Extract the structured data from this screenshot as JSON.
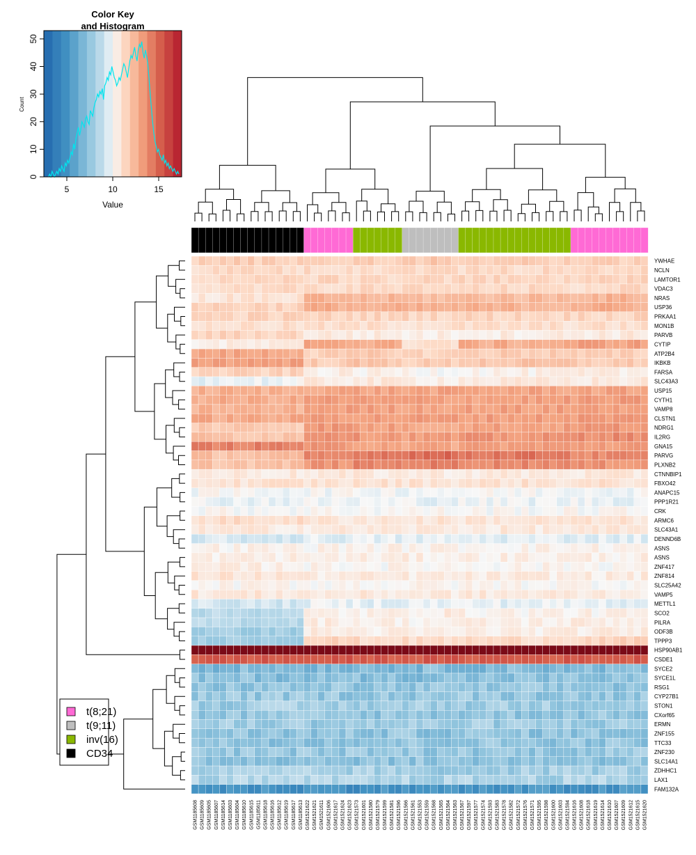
{
  "chart_data": {
    "type": "heatmap",
    "color_key": {
      "title_line1": "Color Key",
      "title_line2": "and Histogram",
      "xlabel": "Value",
      "ylabel": "Count",
      "xlim": [
        2.5,
        17.5
      ],
      "ylim": [
        0,
        53
      ],
      "xticks": [
        5,
        10,
        15
      ],
      "yticks": [
        0,
        10,
        20,
        30,
        40,
        50
      ],
      "color_low": "#2166ac",
      "color_mid": "#f7f7f7",
      "color_high": "#b2182b",
      "histogram_color": "#00e5ee",
      "histogram_counts": [
        0,
        1,
        0,
        2,
        1,
        0,
        1,
        2,
        1,
        3,
        2,
        4,
        3,
        2,
        5,
        4,
        6,
        5,
        7,
        9,
        8,
        12,
        10,
        14,
        16,
        18,
        15,
        17,
        20,
        19,
        18,
        21,
        22,
        20,
        19,
        24,
        23,
        22,
        25,
        27,
        28,
        30,
        29,
        31,
        30,
        32,
        28,
        33,
        34,
        36,
        35,
        38,
        37,
        40,
        38,
        36,
        35,
        33,
        34,
        36,
        35,
        37,
        39,
        41,
        40,
        38,
        36,
        39,
        42,
        44,
        43,
        45,
        47,
        44,
        42,
        46,
        48,
        47,
        49,
        45,
        43,
        46,
        44,
        41,
        36,
        30,
        25,
        20,
        16,
        13,
        11,
        9,
        10,
        8,
        7,
        6,
        8,
        5,
        6,
        4,
        5,
        3,
        4,
        3,
        2,
        3,
        2,
        1,
        2,
        1
      ]
    },
    "legend": [
      {
        "label": "t(8;21)",
        "color": "#ff6ad5"
      },
      {
        "label": "t(9;11)",
        "color": "#bebebe"
      },
      {
        "label": "inv(16)",
        "color": "#8ab800"
      },
      {
        "label": "CD34",
        "color": "#000000"
      }
    ],
    "genes": [
      "YWHAE",
      "NCLN",
      "LAMTOR1",
      "VDAC3",
      "NRAS",
      "USP36",
      "PRKAA1",
      "MON1B",
      "PARVB",
      "CYTIP",
      "ATP2B4",
      "IKBKB",
      "FARSA",
      "SLC43A3",
      "USP15",
      "CYTH1",
      "VAMP8",
      "CLSTN1",
      "NDRG1",
      "IL2RG",
      "GNA15",
      "PARVG",
      "PLXNB2",
      "CTNNBIP1",
      "FBXO42",
      "ANAPC15",
      "PPP1R21",
      "CRK",
      "ARMC6",
      "SLC43A1",
      "DENND6B",
      "ASNS",
      "ASNS",
      "ZNF417",
      "ZNF814",
      "SLC25A42",
      "VAMP5",
      "METTL1",
      "SCO2",
      "PILRA",
      "ODF3B",
      "TPPP3",
      "HSP90AB1",
      "CSDE1",
      "SYCE2",
      "SYCE1L",
      "RSG1",
      "CYP27B1",
      "STON1",
      "CXorf65",
      "ERMN",
      "ZNF155",
      "TTC33",
      "ZNF230",
      "SLC14A1",
      "ZDHHC1",
      "LAX1",
      "FAM132A"
    ],
    "samples": [
      "GSM1185608",
      "GSM1185609",
      "GSM1185605",
      "GSM1185607",
      "GSM1185614",
      "GSM1185603",
      "GSM1185604",
      "GSM1185610",
      "GSM1185615",
      "GSM1185611",
      "GSM1185618",
      "GSM1185616",
      "GSM1185612",
      "GSM1185619",
      "GSM1185617",
      "GSM1185613",
      "GSM1521622",
      "GSM1521621",
      "GSM1521611",
      "GSM1521606",
      "GSM1521617",
      "GSM1521624",
      "GSM1521623",
      "GSM1521573",
      "GSM1521601",
      "GSM1521580",
      "GSM1521579",
      "GSM1521599",
      "GSM1521581",
      "GSM1521596",
      "GSM1521566",
      "GSM1521561",
      "GSM1521553",
      "GSM1521559",
      "GSM1521568",
      "GSM1521565",
      "GSM1521564",
      "GSM1521563",
      "GSM1521567",
      "GSM1521597",
      "GSM1521577",
      "GSM1521574",
      "GSM1521593",
      "GSM1521583",
      "GSM1521578",
      "GSM1521582",
      "GSM1521572",
      "GSM1521576",
      "GSM1521571",
      "GSM1521595",
      "GSM1521598",
      "GSM1521600",
      "GSM1521603",
      "GSM1521594",
      "GSM1521616",
      "GSM1521608",
      "GSM1521618",
      "GSM1521619",
      "GSM1521614",
      "GSM1521610",
      "GSM1521607",
      "GSM1521609",
      "GSM1521612",
      "GSM1521615",
      "GSM1521620"
    ],
    "sample_groups": [
      "CD34",
      "CD34",
      "CD34",
      "CD34",
      "CD34",
      "CD34",
      "CD34",
      "CD34",
      "CD34",
      "CD34",
      "CD34",
      "CD34",
      "CD34",
      "CD34",
      "CD34",
      "CD34",
      "t(8;21)",
      "t(8;21)",
      "t(8;21)",
      "t(8;21)",
      "t(8;21)",
      "t(8;21)",
      "t(8;21)",
      "inv(16)",
      "inv(16)",
      "inv(16)",
      "inv(16)",
      "inv(16)",
      "inv(16)",
      "inv(16)",
      "t(9;11)",
      "t(9;11)",
      "t(9;11)",
      "t(9;11)",
      "t(9;11)",
      "t(9;11)",
      "t(9;11)",
      "t(9;11)",
      "inv(16)",
      "inv(16)",
      "inv(16)",
      "inv(16)",
      "inv(16)",
      "inv(16)",
      "inv(16)",
      "inv(16)",
      "inv(16)",
      "inv(16)",
      "inv(16)",
      "inv(16)",
      "inv(16)",
      "inv(16)",
      "inv(16)",
      "inv(16)",
      "t(8;21)",
      "t(8;21)",
      "t(8;21)",
      "t(8;21)",
      "t(8;21)",
      "t(8;21)",
      "t(8;21)",
      "t(8;21)",
      "t(8;21)",
      "t(8;21)",
      "t(8;21)"
    ],
    "gene_base_values": [
      11.6,
      11.2,
      11.3,
      11.2,
      12.0,
      12.3,
      11.4,
      11.0,
      10.8,
      11.9,
      12.1,
      12.2,
      10.6,
      10.3,
      12.9,
      13.0,
      13.0,
      13.1,
      12.8,
      13.0,
      13.5,
      13.6,
      13.2,
      10.6,
      10.9,
      10.0,
      9.8,
      10.1,
      10.8,
      10.6,
      9.6,
      10.3,
      10.4,
      10.2,
      10.5,
      10.2,
      10.6,
      9.7,
      10.0,
      10.1,
      9.9,
      10.6,
      16.5,
      15.3,
      7.0,
      7.2,
      7.4,
      7.6,
      7.9,
      7.5,
      7.8,
      7.4,
      7.5,
      7.6,
      7.4,
      8.0,
      8.2,
      5.0
    ],
    "group_effects": {
      "CD34": [
        0,
        0,
        0,
        0,
        -1.2,
        -0.8,
        0,
        0,
        0.6,
        -1.5,
        0.8,
        1.0,
        0.8,
        -0.5,
        -0.3,
        -0.3,
        -0.5,
        -0.3,
        -1.0,
        -1.0,
        0.6,
        -1.5,
        -1.2,
        0,
        0,
        0,
        0,
        0,
        0.3,
        0,
        -0.3,
        0,
        0,
        0.2,
        0.3,
        0,
        0.1,
        -0.5,
        -1.4,
        -1.5,
        -2.0,
        -2.6,
        0,
        0,
        0,
        0,
        0,
        0,
        0,
        0,
        0,
        0,
        0,
        0,
        0,
        0,
        0,
        0
      ],
      "t(8;21)": [
        0,
        0,
        0,
        0,
        0.5,
        0.4,
        0,
        0,
        -0.2,
        1.2,
        -0.6,
        -0.5,
        -0.2,
        0.3,
        0.1,
        0.2,
        0.2,
        0.2,
        0.6,
        0.8,
        -0.2,
        0.2,
        0.3,
        0,
        0,
        0,
        0,
        0,
        0,
        0,
        0,
        0,
        0,
        0,
        0,
        0,
        0,
        0,
        0.3,
        0.4,
        0.6,
        0.8,
        0,
        0,
        0,
        0,
        0,
        0,
        0,
        0,
        0,
        0,
        0,
        0,
        0,
        0,
        0,
        0
      ],
      "inv(16)": [
        0,
        0,
        0,
        0,
        0.3,
        0.2,
        0,
        0,
        -0.3,
        0.8,
        -0.4,
        -0.3,
        -0.3,
        0.3,
        0.1,
        0.1,
        0.1,
        0.1,
        0.3,
        0.4,
        -0.3,
        0.9,
        0.7,
        0,
        0,
        0,
        0,
        0,
        0,
        0,
        0,
        0,
        0,
        0,
        0,
        0,
        0,
        0,
        0.3,
        0.3,
        0.5,
        0.6,
        0,
        0,
        0,
        0,
        0,
        0,
        0,
        0,
        0,
        0,
        0,
        0,
        0,
        0,
        0,
        0
      ],
      "t(9;11)": [
        0.2,
        0.1,
        0,
        0,
        0.2,
        0.2,
        0,
        0,
        -0.4,
        -0.8,
        -0.7,
        -0.6,
        -0.4,
        0.2,
        0.1,
        0.1,
        0.1,
        0.1,
        0.1,
        0.2,
        -0.6,
        1.2,
        0.9,
        0,
        0,
        0,
        0,
        0,
        0,
        0,
        0,
        0,
        0,
        0,
        0,
        0,
        0,
        0,
        0.5,
        0.2,
        0.4,
        0.5,
        0,
        0,
        0,
        0,
        0,
        0,
        0,
        0,
        0,
        0,
        0,
        0,
        0,
        -0.5,
        0,
        0
      ]
    },
    "column_dendrogram": [
      [
        3,
        4,
        3.6
      ],
      [
        5,
        6,
        3.8
      ],
      [
        11,
        12,
        3.2
      ],
      [
        13,
        14,
        3.2
      ],
      [
        15,
        16,
        3.2
      ],
      [
        -3,
        -4,
        4.0
      ],
      [
        -1,
        -2,
        5.6
      ],
      [
        10,
        -5,
        4.2
      ],
      [
        9,
        -8,
        4.9
      ],
      [
        8,
        -9,
        5.5
      ],
      [
        7,
        -10,
        6.1
      ],
      [
        -6,
        -11,
        7.7
      ],
      [
        1,
        2,
        8.2
      ],
      [
        -13,
        -7,
        9.7
      ],
      [
        -14,
        -12,
        11.5
      ],
      [
        17,
        18,
        8.0
      ],
      [
        21,
        22,
        6.9
      ],
      [
        20,
        -17,
        7.7
      ],
      [
        -16,
        -18,
        9.1
      ],
      [
        19,
        -19,
        11.6
      ],
      [
        24,
        25,
        6.8
      ],
      [
        28,
        29,
        7.1
      ],
      [
        27,
        -21,
        8.0
      ],
      [
        -22,
        30,
        9.8
      ],
      [
        26,
        -23,
        9.0
      ],
      [
        -25,
        -24,
        11.4
      ],
      [
        -20,
        -26,
        12.6
      ],
      [
        32,
        33,
        7.8
      ],
      [
        34,
        35,
        6.9
      ],
      [
        31,
        -28,
        10.6
      ],
      [
        -29,
        36,
        13.5
      ],
      [
        -30,
        -31,
        15.0
      ],
      [
        37,
        38,
        8.1
      ],
      [
        -32,
        -33,
        16.5
      ],
      [
        40,
        41,
        4.9
      ],
      [
        42,
        43,
        4.6
      ],
      [
        44,
        45,
        4.4
      ],
      [
        46,
        47,
        5.7
      ],
      [
        -36,
        -37,
        6.7
      ],
      [
        -38,
        -35,
        7.4
      ],
      [
        39,
        -39,
        12.8
      ],
      [
        48,
        49,
        4.5
      ],
      [
        51,
        52,
        4.6
      ],
      [
        53,
        54,
        5.0
      ],
      [
        50,
        -42,
        6.1
      ],
      [
        -43,
        -44,
        7.2
      ],
      [
        -41,
        -45,
        9.2
      ],
      [
        55,
        56,
        5.4
      ],
      [
        57,
        58,
        5.7
      ],
      [
        59,
        60,
        6.1
      ],
      [
        61,
        62,
        6.4
      ],
      [
        -47,
        -48,
        7.8
      ],
      [
        -49,
        -50,
        9.0
      ],
      [
        -51,
        -52,
        11.0
      ],
      [
        63,
        64,
        7.0
      ],
      [
        -53,
        -54,
        8.6
      ],
      [
        -55,
        -56,
        10.3
      ],
      [
        -57,
        -58,
        12.3
      ],
      [
        -46,
        -59,
        13.5
      ],
      [
        -40,
        -60,
        16.6
      ],
      [
        -34,
        -61,
        24.0
      ],
      [
        -27,
        -62,
        27.0
      ],
      [
        -15,
        -63,
        31.2
      ],
      [
        -6,
        -11,
        0
      ],
      [
        -64,
        -65,
        34.0
      ]
    ],
    "column_dendrogram_note": "R hclust merge format; 1-based leaf indices; negative = earlier merge id",
    "row_dendrogram_note": "row dendrogram computed from gene order groups"
  }
}
